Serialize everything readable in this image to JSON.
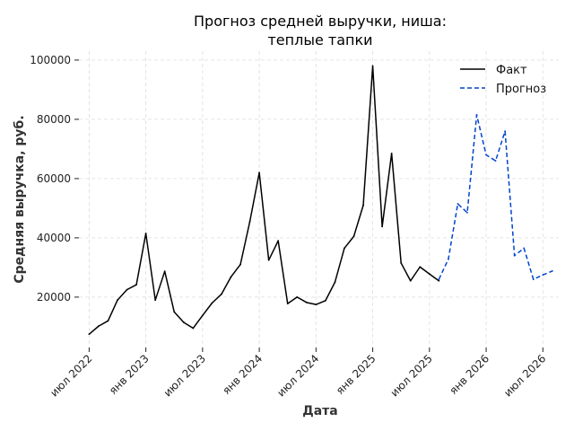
{
  "chart_data": {
    "type": "line",
    "title": [
      "Прогноз средней выручки, ниша:",
      "теплые тапки"
    ],
    "xlabel": "Дата",
    "ylabel": "Средняя выручка, руб.",
    "x_ticks": [
      {
        "label": "июл 2022",
        "t": 2022.5
      },
      {
        "label": "янв 2023",
        "t": 2023.0
      },
      {
        "label": "июл 2023",
        "t": 2023.5
      },
      {
        "label": "янв 2024",
        "t": 2024.0
      },
      {
        "label": "июл 2024",
        "t": 2024.5
      },
      {
        "label": "янв 2025",
        "t": 2025.0
      },
      {
        "label": "июл 2025",
        "t": 2025.5
      },
      {
        "label": "янв 2026",
        "t": 2026.0
      },
      {
        "label": "июл 2026",
        "t": 2026.5
      }
    ],
    "y_ticks": [
      20000,
      40000,
      60000,
      80000,
      100000
    ],
    "ylim": [
      3000,
      103000
    ],
    "grid": true,
    "legend_position": "top-right",
    "series": [
      {
        "name": "Факт",
        "color": "#000000",
        "style": "solid",
        "points": [
          [
            "2022-07",
            7500
          ],
          [
            "2022-08",
            10200
          ],
          [
            "2022-09",
            12000
          ],
          [
            "2022-10",
            19000
          ],
          [
            "2022-11",
            22500
          ],
          [
            "2022-12",
            24200
          ],
          [
            "2023-01",
            41500
          ],
          [
            "2023-02",
            19000
          ],
          [
            "2023-03",
            28700
          ],
          [
            "2023-04",
            15000
          ],
          [
            "2023-05",
            11500
          ],
          [
            "2023-06",
            9500
          ],
          [
            "2023-07",
            13800
          ],
          [
            "2023-08",
            18000
          ],
          [
            "2023-09",
            21000
          ],
          [
            "2023-10",
            26800
          ],
          [
            "2023-11",
            31000
          ],
          [
            "2023-12",
            45500
          ],
          [
            "2024-01",
            62000
          ],
          [
            "2024-02",
            32500
          ],
          [
            "2024-03",
            39000
          ],
          [
            "2024-04",
            17800
          ],
          [
            "2024-05",
            20000
          ],
          [
            "2024-06",
            18200
          ],
          [
            "2024-07",
            17500
          ],
          [
            "2024-08",
            18800
          ],
          [
            "2024-09",
            25000
          ],
          [
            "2024-10",
            36500
          ],
          [
            "2024-11",
            40500
          ],
          [
            "2024-12",
            51000
          ],
          [
            "2025-01",
            98000
          ],
          [
            "2025-02",
            43800
          ],
          [
            "2025-03",
            68500
          ],
          [
            "2025-04",
            31500
          ],
          [
            "2025-05",
            25500
          ],
          [
            "2025-06",
            30200
          ],
          [
            "2025-07",
            27800
          ],
          [
            "2025-08",
            25500
          ]
        ]
      },
      {
        "name": "Прогноз",
        "color": "#0044cc",
        "style": "dashed",
        "points": [
          [
            "2025-08",
            26000
          ],
          [
            "2025-09",
            32800
          ],
          [
            "2025-10",
            51500
          ],
          [
            "2025-11",
            48500
          ],
          [
            "2025-12",
            81500
          ],
          [
            "2026-01",
            68000
          ],
          [
            "2026-02",
            66000
          ],
          [
            "2026-03",
            76000
          ],
          [
            "2026-04",
            34000
          ],
          [
            "2026-05",
            36500
          ],
          [
            "2026-06",
            26000
          ],
          [
            "2026-07",
            27500
          ],
          [
            "2026-08",
            28800
          ]
        ]
      }
    ]
  }
}
